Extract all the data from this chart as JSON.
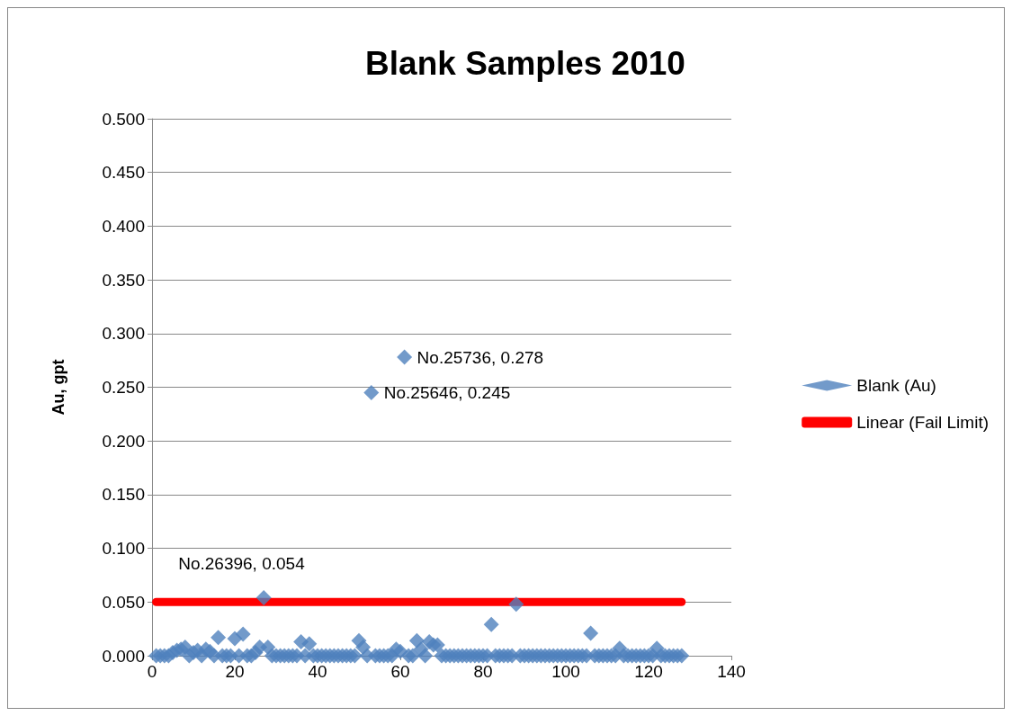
{
  "chart_data": {
    "type": "scatter",
    "title": "Blank Samples 2010",
    "ylabel": "Au, gpt",
    "xlim": [
      0,
      140
    ],
    "xticks": [
      0,
      20,
      40,
      60,
      80,
      100,
      120,
      140
    ],
    "ylim": [
      0,
      0.5
    ],
    "yticks": [
      {
        "value": 0,
        "label": "0.000"
      },
      {
        "value": 0.05,
        "label": "0.050"
      },
      {
        "value": 0.1,
        "label": "0.100"
      },
      {
        "value": 0.15,
        "label": "0.150"
      },
      {
        "value": 0.2,
        "label": "0.200"
      },
      {
        "value": 0.25,
        "label": "0.250"
      },
      {
        "value": 0.3,
        "label": "0.300"
      },
      {
        "value": 0.35,
        "label": "0.350"
      },
      {
        "value": 0.4,
        "label": "0.400"
      },
      {
        "value": 0.45,
        "label": "0.450"
      },
      {
        "value": 0.5,
        "label": "0.500"
      }
    ],
    "grid": "y",
    "legend": "right",
    "marker": "diamond",
    "series": [
      {
        "name": "Blank (Au)",
        "color": "#4f81bd",
        "x": [
          1,
          2,
          3,
          4,
          5,
          6,
          7,
          8,
          9,
          10,
          11,
          12,
          13,
          14,
          15,
          16,
          17,
          18,
          19,
          20,
          21,
          22,
          23,
          24,
          25,
          26,
          27,
          28,
          29,
          30,
          31,
          32,
          33,
          34,
          35,
          36,
          37,
          38,
          39,
          40,
          41,
          42,
          43,
          44,
          45,
          46,
          47,
          48,
          49,
          50,
          51,
          52,
          53,
          54,
          55,
          56,
          57,
          58,
          59,
          60,
          61,
          62,
          63,
          64,
          65,
          66,
          67,
          68,
          69,
          70,
          71,
          72,
          73,
          74,
          75,
          76,
          77,
          78,
          79,
          80,
          81,
          82,
          83,
          84,
          85,
          86,
          87,
          88,
          89,
          90,
          91,
          92,
          93,
          94,
          95,
          96,
          97,
          98,
          99,
          100,
          101,
          102,
          103,
          104,
          105,
          106,
          107,
          108,
          109,
          110,
          111,
          112,
          113,
          114,
          115,
          116,
          117,
          118,
          119,
          120,
          121,
          122,
          123,
          124,
          125,
          126,
          127,
          128
        ],
        "values": [
          0,
          0,
          0,
          0,
          0.003,
          0.005,
          0.006,
          0.008,
          0,
          0.003,
          0.005,
          0,
          0.006,
          0.004,
          0,
          0.017,
          0,
          0,
          0,
          0.016,
          0,
          0.02,
          0,
          0,
          0.003,
          0.008,
          0.054,
          0.008,
          0,
          0,
          0,
          0,
          0,
          0,
          0,
          0.013,
          0,
          0.011,
          0,
          0,
          0,
          0,
          0,
          0,
          0,
          0,
          0,
          0,
          0,
          0.014,
          0.008,
          0,
          0.245,
          0,
          0,
          0,
          0,
          0,
          0.006,
          0.004,
          0.278,
          0,
          0,
          0.014,
          0.006,
          0,
          0.013,
          0.01,
          0.01,
          0,
          0,
          0,
          0,
          0,
          0,
          0,
          0,
          0,
          0,
          0,
          0,
          0.029,
          0,
          0,
          0,
          0,
          0,
          0.048,
          0,
          0,
          0,
          0,
          0,
          0,
          0,
          0,
          0,
          0,
          0,
          0,
          0,
          0,
          0,
          0,
          0,
          0.021,
          0,
          0,
          0,
          0,
          0,
          0,
          0.007,
          0,
          0,
          0,
          0,
          0,
          0,
          0,
          0,
          0.007,
          0,
          0,
          0,
          0,
          0,
          0
        ]
      },
      {
        "name": "Linear (Fail Limit)",
        "type": "line",
        "color": "#ff0000",
        "marker": "none",
        "x": [
          1,
          128
        ],
        "values": [
          0.05,
          0.05
        ]
      }
    ],
    "annotations": [
      {
        "text": "No.25736, 0.278",
        "x": 61,
        "y": 0.278
      },
      {
        "text": "No.25646, 0.245",
        "x": 53,
        "y": 0.245
      },
      {
        "text": "No.26396, 0.054",
        "x": 27,
        "y": 0.054
      }
    ]
  }
}
